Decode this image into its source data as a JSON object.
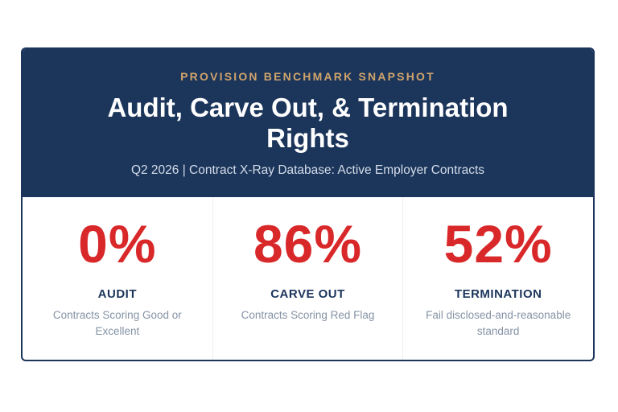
{
  "header": {
    "eyebrow": "PROVISION BENCHMARK SNAPSHOT",
    "title": "Audit, Carve Out, & Termination Rights",
    "subtitle": "Q2 2026 | Contract X-Ray Database: Active Employer Contracts"
  },
  "stats": [
    {
      "value": "0%",
      "label": "AUDIT",
      "description": "Contracts Scoring Good or Excellent"
    },
    {
      "value": "86%",
      "label": "CARVE OUT",
      "description": "Contracts Scoring Red Flag"
    },
    {
      "value": "52%",
      "label": "TERMINATION",
      "description": "Fail disclosed-and-reasonable standard"
    }
  ],
  "colors": {
    "header_background": "#1b355b",
    "eyebrow": "#d1a46b",
    "stat_value": "#d9282a",
    "stat_label": "#1b355b",
    "stat_description": "#8593a5"
  }
}
